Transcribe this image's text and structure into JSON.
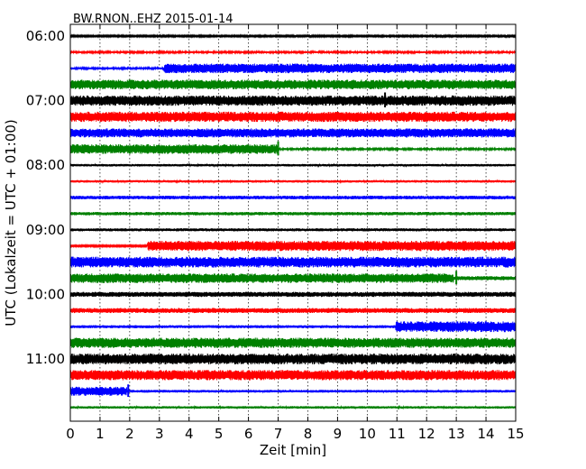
{
  "chart_data": {
    "type": "line",
    "title": "BW.RNON..EHZ 2015-01-14",
    "xlabel": "Zeit  [min]",
    "ylabel": "UTC (Lokalzeit = UTC + 01:00)",
    "xlim": [
      0,
      15
    ],
    "x_ticks": [
      "0",
      "1",
      "2",
      "3",
      "4",
      "5",
      "6",
      "7",
      "8",
      "9",
      "10",
      "11",
      "12",
      "13",
      "14",
      "15"
    ],
    "y_ticks": [
      "06:00",
      "07:00",
      "08:00",
      "09:00",
      "10:00",
      "11:00"
    ],
    "grid": "vertical dotted",
    "colors": [
      "#000000",
      "#ff0000",
      "#0000ff",
      "#008000"
    ],
    "traces": [
      {
        "start": "06:00",
        "color": "#000000",
        "segments": [
          [
            0,
            15,
            0.1
          ]
        ]
      },
      {
        "start": "06:15",
        "color": "#ff0000",
        "segments": [
          [
            0,
            15,
            0.12
          ]
        ]
      },
      {
        "start": "06:30",
        "color": "#0000ff",
        "segments": [
          [
            0,
            3.15,
            0.12
          ],
          [
            3.15,
            15,
            0.58
          ]
        ]
      },
      {
        "start": "06:45",
        "color": "#008000",
        "segments": [
          [
            0,
            15,
            0.58
          ]
        ]
      },
      {
        "start": "07:00",
        "color": "#000000",
        "segments": [
          [
            0,
            15,
            0.62
          ]
        ],
        "spikes": [
          [
            10.6,
            0.9
          ]
        ]
      },
      {
        "start": "07:15",
        "color": "#ff0000",
        "segments": [
          [
            0,
            15,
            0.62
          ]
        ]
      },
      {
        "start": "07:30",
        "color": "#0000ff",
        "segments": [
          [
            0,
            15,
            0.55
          ]
        ]
      },
      {
        "start": "07:45",
        "color": "#008000",
        "segments": [
          [
            0,
            7.0,
            0.58
          ],
          [
            7.0,
            15,
            0.12
          ]
        ],
        "spikes": [
          [
            7.0,
            0.85
          ]
        ]
      },
      {
        "start": "08:00",
        "color": "#000000",
        "segments": [
          [
            0,
            15,
            0.15
          ]
        ]
      },
      {
        "start": "08:15",
        "color": "#ff0000",
        "segments": [
          [
            0,
            15,
            0.15
          ]
        ]
      },
      {
        "start": "08:30",
        "color": "#0000ff",
        "segments": [
          [
            0,
            15,
            0.22
          ]
        ]
      },
      {
        "start": "08:45",
        "color": "#008000",
        "segments": [
          [
            0,
            15,
            0.2
          ]
        ]
      },
      {
        "start": "09:00",
        "color": "#000000",
        "segments": [
          [
            0,
            15,
            0.18
          ]
        ]
      },
      {
        "start": "09:15",
        "color": "#ff0000",
        "segments": [
          [
            0,
            2.6,
            0.1
          ],
          [
            2.6,
            15,
            0.62
          ]
        ]
      },
      {
        "start": "09:30",
        "color": "#0000ff",
        "segments": [
          [
            0,
            15,
            0.65
          ]
        ]
      },
      {
        "start": "09:45",
        "color": "#008000",
        "segments": [
          [
            0,
            12.9,
            0.58
          ],
          [
            12.9,
            15,
            0.25
          ]
        ],
        "spikes": [
          [
            13.0,
            0.8
          ]
        ]
      },
      {
        "start": "10:00",
        "color": "#000000",
        "segments": [
          [
            0,
            15,
            0.3
          ]
        ]
      },
      {
        "start": "10:15",
        "color": "#ff0000",
        "segments": [
          [
            0,
            15,
            0.3
          ]
        ]
      },
      {
        "start": "10:30",
        "color": "#0000ff",
        "segments": [
          [
            0,
            10.95,
            0.18
          ],
          [
            10.95,
            15,
            0.65
          ]
        ]
      },
      {
        "start": "10:45",
        "color": "#008000",
        "segments": [
          [
            0,
            15,
            0.62
          ]
        ]
      },
      {
        "start": "11:00",
        "color": "#000000",
        "segments": [
          [
            0,
            15,
            0.65
          ]
        ]
      },
      {
        "start": "11:15",
        "color": "#ff0000",
        "segments": [
          [
            0,
            15,
            0.62
          ]
        ]
      },
      {
        "start": "11:30",
        "color": "#0000ff",
        "segments": [
          [
            0,
            1.9,
            0.55
          ],
          [
            1.9,
            15,
            0.16
          ]
        ],
        "spikes": [
          [
            1.95,
            0.75
          ]
        ]
      },
      {
        "start": "11:45",
        "color": "#008000",
        "segments": [
          [
            0,
            15,
            0.15
          ]
        ]
      }
    ]
  }
}
